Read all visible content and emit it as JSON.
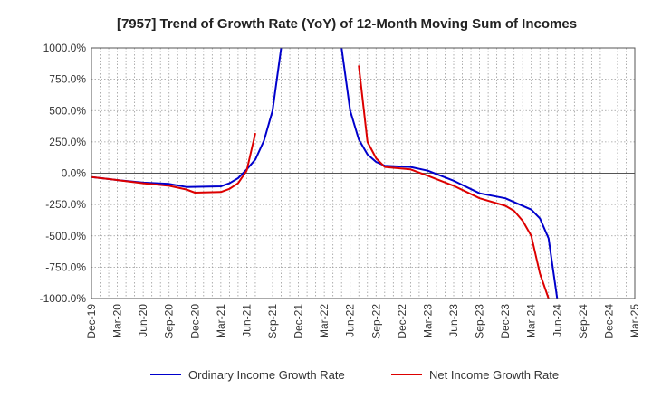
{
  "chart_data": {
    "type": "line",
    "title": "[7957]  Trend of Growth Rate (YoY) of 12-Month Moving Sum of Incomes",
    "xlabel": "",
    "ylabel": "",
    "ylim": [
      -1000,
      1000
    ],
    "yticks": [
      1000,
      750,
      500,
      250,
      0,
      -250,
      -500,
      -750,
      -1000
    ],
    "ytick_labels": [
      "1000.0%",
      "750.0%",
      "500.0%",
      "250.0%",
      "0.0%",
      "-250.0%",
      "-500.0%",
      "-750.0%",
      "-1000.0%"
    ],
    "xtick_labels": [
      "Dec-19",
      "Mar-20",
      "Jun-20",
      "Sep-20",
      "Dec-20",
      "Mar-21",
      "Jun-21",
      "Sep-21",
      "Dec-21",
      "Mar-22",
      "Jun-22",
      "Sep-22",
      "Dec-22",
      "Mar-23",
      "Jun-23",
      "Sep-23",
      "Dec-23",
      "Mar-24",
      "Jun-24",
      "Sep-24",
      "Dec-24",
      "Mar-25"
    ],
    "grid": true,
    "legend_position": "bottom",
    "series": [
      {
        "name": "Ordinary Income Growth Rate",
        "color": "#0000cc",
        "points": [
          [
            "Dec-19",
            -30
          ],
          [
            "Mar-20",
            -55
          ],
          [
            "Jun-20",
            -75
          ],
          [
            "Sep-20",
            -85
          ],
          [
            "Nov-20",
            -110
          ],
          [
            "Mar-21",
            -105
          ],
          [
            "Apr-21",
            -80
          ],
          [
            "May-21",
            -40
          ],
          [
            "Jun-21",
            30
          ],
          [
            "Jul-21",
            110
          ],
          [
            "Aug-21",
            260
          ],
          [
            "Sep-21",
            500
          ],
          [
            "Oct-21",
            1000
          ],
          [
            null,
            null
          ],
          [
            "May-22",
            1000
          ],
          [
            "Jun-22",
            500
          ],
          [
            "Jul-22",
            270
          ],
          [
            "Aug-22",
            150
          ],
          [
            "Sep-22",
            90
          ],
          [
            "Oct-22",
            60
          ],
          [
            "Jan-23",
            50
          ],
          [
            "Mar-23",
            20
          ],
          [
            "Jun-23",
            -60
          ],
          [
            "Sep-23",
            -160
          ],
          [
            "Dec-23",
            -200
          ],
          [
            "Jan-24",
            -230
          ],
          [
            "Mar-24",
            -290
          ],
          [
            "Apr-24",
            -360
          ],
          [
            "May-24",
            -520
          ],
          [
            "Jun-24",
            -1000
          ]
        ]
      },
      {
        "name": "Net Income Growth Rate",
        "color": "#dd0000",
        "points": [
          [
            "Dec-19",
            -30
          ],
          [
            "Mar-20",
            -55
          ],
          [
            "Jun-20",
            -80
          ],
          [
            "Sep-20",
            -100
          ],
          [
            "Nov-20",
            -130
          ],
          [
            "Dec-20",
            -155
          ],
          [
            "Mar-21",
            -150
          ],
          [
            "Apr-21",
            -125
          ],
          [
            "May-21",
            -80
          ],
          [
            "Jun-21",
            20
          ],
          [
            "Jul-21",
            320
          ],
          [
            null,
            null
          ],
          [
            "Jul-22",
            860
          ],
          [
            "Aug-22",
            250
          ],
          [
            "Sep-22",
            120
          ],
          [
            "Oct-22",
            50
          ],
          [
            "Jan-23",
            30
          ],
          [
            "Mar-23",
            -20
          ],
          [
            "Jun-23",
            -100
          ],
          [
            "Sep-23",
            -200
          ],
          [
            "Dec-23",
            -260
          ],
          [
            "Jan-24",
            -300
          ],
          [
            "Feb-24",
            -380
          ],
          [
            "Mar-24",
            -500
          ],
          [
            "Apr-24",
            -800
          ],
          [
            "May-24",
            -1000
          ]
        ]
      }
    ]
  }
}
